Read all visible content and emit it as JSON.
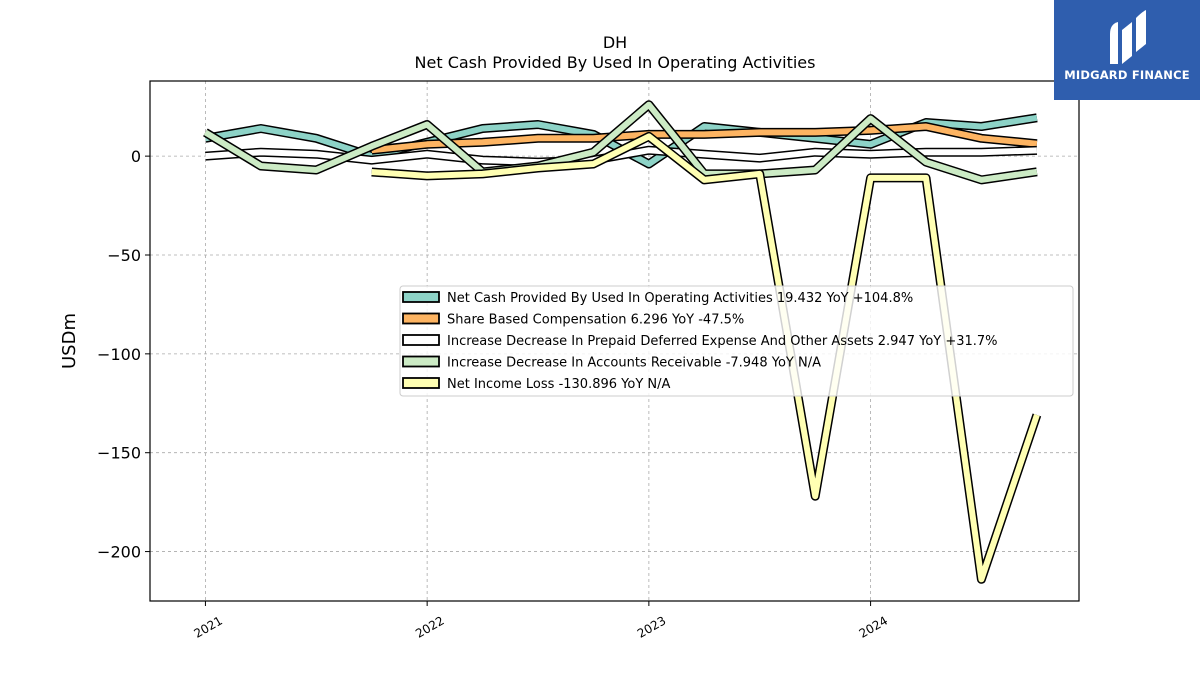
{
  "logo": {
    "text": "MIDGARD FINANCE"
  },
  "chart_data": {
    "type": "line",
    "title": "DH",
    "subtitle": "Net Cash Provided By Used In Operating Activities",
    "xlabel": "",
    "ylabel": "USDm",
    "ylim": [
      -225,
      38
    ],
    "yticks": [
      0,
      -50,
      -100,
      -150,
      -200
    ],
    "ytick_labels": [
      "0",
      "−50",
      "−100",
      "−150",
      "−200"
    ],
    "xticks": [
      2021,
      2022,
      2023,
      2024
    ],
    "xtick_labels": [
      "2021",
      "2022",
      "2023",
      "2024"
    ],
    "xlim": [
      2020.75,
      2021.0,
      2024.94
    ],
    "grid": true,
    "legend_position": "center-right",
    "series": [
      {
        "name": "Net Cash Provided By Used In Operating Activities",
        "legend_label": "Net Cash Provided By Used In Operating Activities  19.432 YoY +104.8%",
        "color": "#8dd3c7",
        "x": [
          2021.0,
          2021.25,
          2021.5,
          2021.75,
          2022.0,
          2022.25,
          2022.5,
          2022.75,
          2023.0,
          2023.25,
          2023.5,
          2023.75,
          2024.0,
          2024.25,
          2024.5,
          2024.75
        ],
        "values": [
          9,
          14,
          9,
          0,
          7,
          14,
          16,
          11,
          -4,
          15,
          12,
          9,
          6,
          17,
          15,
          19.4
        ]
      },
      {
        "name": "Share Based Compensation",
        "legend_label": "Share Based Compensation  6.296 YoY -47.5%",
        "color": "#fdb462",
        "x": [
          2021.75,
          2022.0,
          2022.25,
          2022.5,
          2022.75,
          2023.0,
          2023.25,
          2023.5,
          2023.75,
          2024.0,
          2024.25,
          2024.5,
          2024.75
        ],
        "values": [
          3,
          6,
          7,
          9,
          9,
          11,
          11,
          12,
          12,
          13,
          15,
          9,
          6.3
        ]
      },
      {
        "name": "Increase Decrease In Prepaid Deferred Expense And Other Assets",
        "legend_label": "Increase Decrease In Prepaid Deferred Expense And Other Assets  2.947 YoY +31.7%",
        "color": "#ffffff",
        "x": [
          2021.0,
          2021.25,
          2021.5,
          2021.75,
          2022.0,
          2022.25,
          2022.5,
          2022.75,
          2023.0,
          2023.25,
          2023.5,
          2023.75,
          2024.0,
          2024.25,
          2024.5,
          2024.75
        ],
        "values": [
          0,
          2,
          1,
          -2,
          1,
          -2,
          -3,
          -2,
          3,
          1,
          -1,
          2,
          1,
          2,
          2,
          2.9
        ]
      },
      {
        "name": "Increase Decrease In Accounts Receivable",
        "legend_label": "Increase Decrease In Accounts Receivable  -7.948 YoY N/A",
        "color": "#ccebc5",
        "x": [
          2021.0,
          2021.25,
          2021.5,
          2021.75,
          2022.0,
          2022.25,
          2022.5,
          2022.75,
          2023.0,
          2023.25,
          2023.5,
          2023.75,
          2024.0,
          2024.25,
          2024.5,
          2024.75
        ],
        "values": [
          12,
          -5,
          -7,
          5,
          16,
          -8,
          -5,
          2,
          26,
          -9,
          -9,
          -7,
          19,
          -3,
          -12,
          -7.9
        ]
      },
      {
        "name": "Net Income Loss",
        "legend_label": "Net Income Loss  -130.896 YoY N/A",
        "color": "#ffffb3",
        "x": [
          2021.75,
          2022.0,
          2022.25,
          2022.5,
          2022.75,
          2023.0,
          2023.25,
          2023.5,
          2023.75,
          2024.0,
          2024.25,
          2024.5,
          2024.75
        ],
        "values": [
          -8,
          -10,
          -9,
          -6,
          -4,
          10,
          -12,
          -9,
          -172,
          -11,
          -11,
          -214,
          -130.9
        ]
      }
    ]
  }
}
